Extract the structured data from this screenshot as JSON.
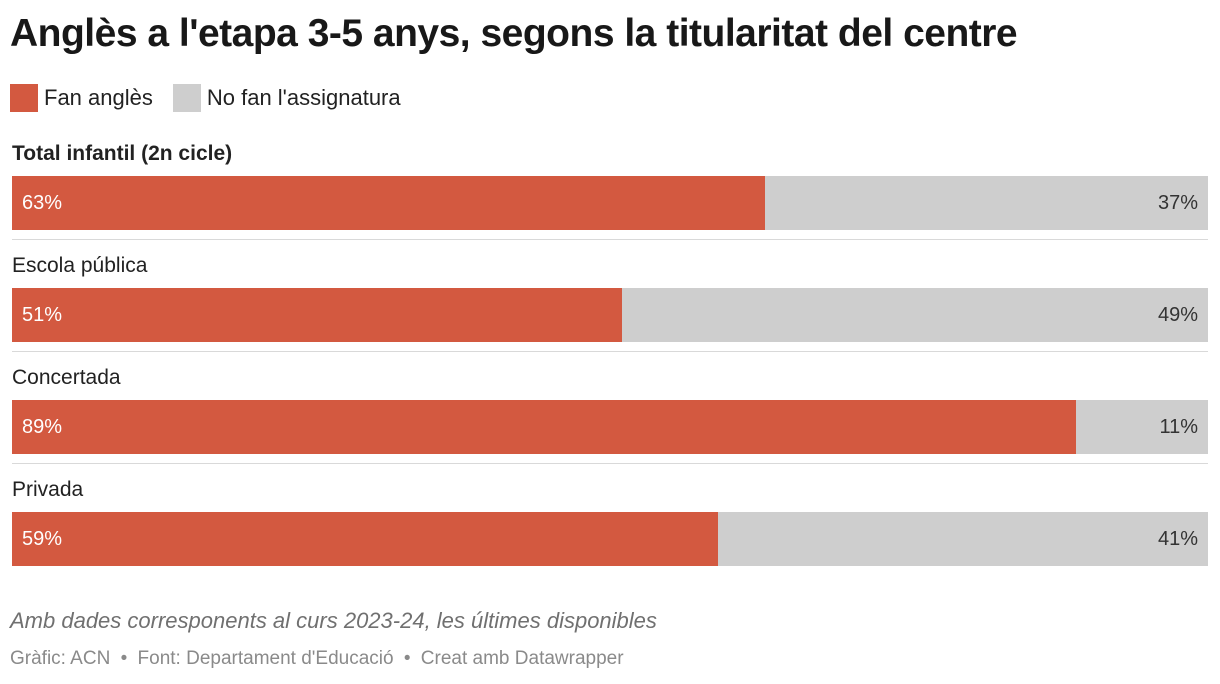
{
  "chart_data": {
    "type": "bar",
    "orientation": "horizontal",
    "stacked": true,
    "title": "Anglès a l'etapa 3-5 anys, segons la titularitat del centre",
    "notes": "Amb dades corresponents al curs 2023-24, les últimes disponibles",
    "legend_position": "top-left",
    "grid": false,
    "xlim": [
      0,
      100
    ],
    "categories": [
      "Total infantil (2n cicle)",
      "Escola pública",
      "Concertada",
      "Privada"
    ],
    "series": [
      {
        "name": "Fan anglès",
        "color": "#d35940",
        "values": [
          63,
          51,
          89,
          59
        ],
        "labels": [
          "63%",
          "51%",
          "89%",
          "59%"
        ]
      },
      {
        "name": "No fan l'assignatura",
        "color": "#cecece",
        "values": [
          37,
          49,
          11,
          41
        ],
        "labels": [
          "37%",
          "49%",
          "11%",
          "41%"
        ]
      }
    ]
  },
  "footer": {
    "credit": "Gràfic: ACN",
    "source": "Font: Departament d'Educació",
    "tool": "Creat amb Datawrapper",
    "separator": "•"
  }
}
